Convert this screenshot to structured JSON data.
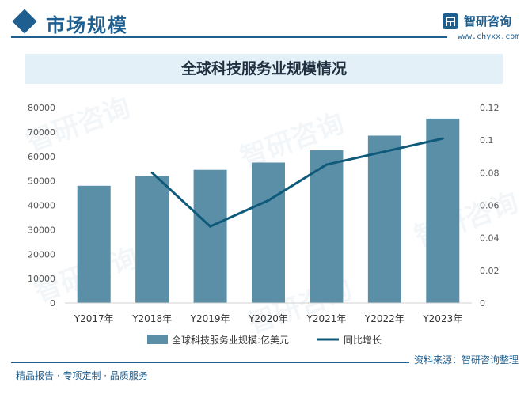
{
  "header": {
    "section_title": "市场规模",
    "brand_name": "智研咨询",
    "brand_site": "www.chyxx.com"
  },
  "watermark_text": "智研咨询",
  "footer": {
    "source": "资料来源：智研咨询整理",
    "slogan": "精品报告 · 专项定制 · 品质服务"
  },
  "colors": {
    "brand": "#1f5f8f",
    "bar": "#5b8fa8",
    "line": "#0f5a7a",
    "title_band": "#e4f0f8"
  },
  "chart_data": {
    "type": "bar",
    "title": "全球科技服务业规模情况",
    "categories": [
      "Y2017年",
      "Y2018年",
      "Y2019年",
      "Y2020年",
      "Y2021年",
      "Y2022年",
      "Y2023年"
    ],
    "series": [
      {
        "name": "全球科技服务业规模:亿美元",
        "type": "bar",
        "axis": "left",
        "values": [
          48000,
          52000,
          54500,
          57500,
          62500,
          68500,
          75500
        ]
      },
      {
        "name": "同比增长",
        "type": "line",
        "axis": "right",
        "values": [
          null,
          0.08,
          0.047,
          0.063,
          0.085,
          0.093,
          0.101
        ]
      }
    ],
    "y_left": {
      "min": 0,
      "max": 80000,
      "ticks": [
        0,
        10000,
        20000,
        30000,
        40000,
        50000,
        60000,
        70000,
        80000
      ]
    },
    "y_right": {
      "min": 0,
      "max": 0.12,
      "ticks": [
        "0",
        "0.02",
        "0.04",
        "0.06",
        "0.08",
        "0.1",
        "0.12"
      ]
    },
    "grid": false,
    "legend": "bottom"
  }
}
